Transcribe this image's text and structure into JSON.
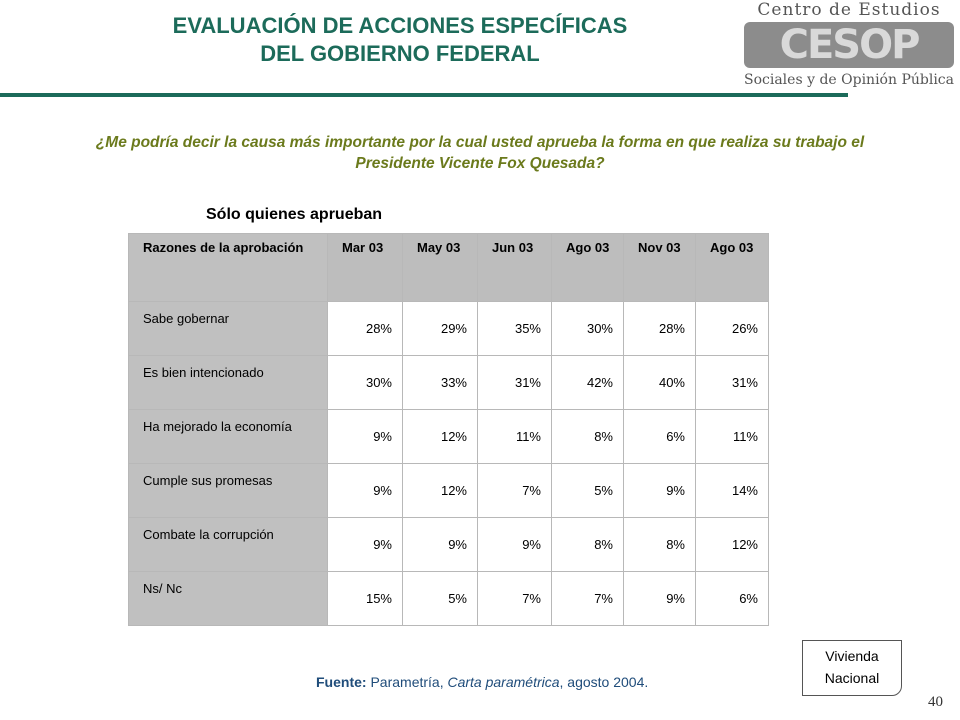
{
  "header": {
    "title_line1": "EVALUACIÓN DE ACCIONES ESPECÍFICAS",
    "title_line2": "DEL GOBIERNO FEDERAL"
  },
  "logo": {
    "top": "Centro de Estudios",
    "mark": "CESOP",
    "bottom": "Sociales y de Opinión Pública"
  },
  "question": "¿Me podría decir la causa más importante por la cual usted aprueba la forma en que realiza su trabajo el Presidente Vicente Fox Quesada?",
  "subtitle": "Sólo quienes aprueban",
  "table": {
    "corner_header": "Razones de la aprobación",
    "columns": [
      "Mar 03",
      "May 03",
      "Jun 03",
      "Ago 03",
      "Nov 03",
      "Ago 03"
    ],
    "rows": [
      {
        "label": "Sabe gobernar",
        "values": [
          "28%",
          "29%",
          "35%",
          "30%",
          "28%",
          "26%"
        ]
      },
      {
        "label": "Es bien intencionado",
        "values": [
          "30%",
          "33%",
          "31%",
          "42%",
          "40%",
          "31%"
        ]
      },
      {
        "label": "Ha mejorado la economía",
        "values": [
          "9%",
          "12%",
          "11%",
          "8%",
          "6%",
          "11%"
        ]
      },
      {
        "label": "Cumple sus promesas",
        "values": [
          "9%",
          "12%",
          "7%",
          "5%",
          "9%",
          "14%"
        ]
      },
      {
        "label": "Combate la corrupción",
        "values": [
          "9%",
          "9%",
          "9%",
          "8%",
          "8%",
          "12%"
        ]
      },
      {
        "label": "Ns/ Nc",
        "values": [
          "15%",
          "5%",
          "7%",
          "7%",
          "9%",
          "6%"
        ]
      }
    ]
  },
  "source": {
    "label": "Fuente:",
    "part1": "Parametría,",
    "publication": "Carta paramétrica",
    "part2": ", agosto 2004."
  },
  "note": {
    "line1": "Vivienda",
    "line2": "Nacional"
  },
  "page_number": "40",
  "colors": {
    "title": "#1c6b5a",
    "question": "#6b7a1c",
    "source": "#1f4c7a",
    "header_fill": "#c0c0c0"
  }
}
